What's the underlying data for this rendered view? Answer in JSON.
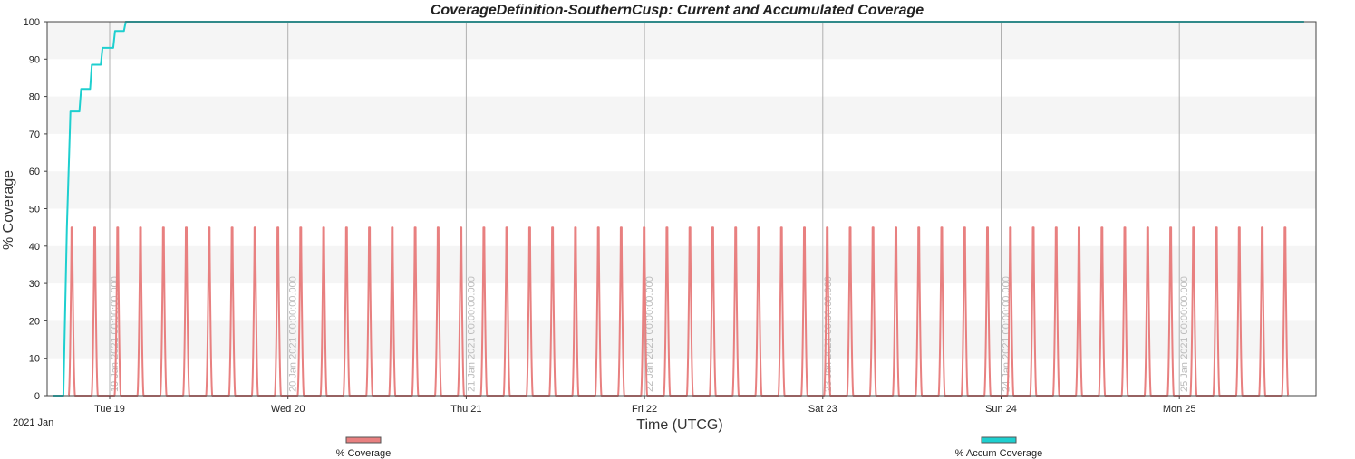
{
  "chart_data": {
    "type": "line",
    "title": "CoverageDefinition-SouthernCusp:  Current and Accumulated Coverage",
    "xlabel": "Time (UTCG)",
    "ylabel": "% Coverage",
    "ylim": [
      0,
      100
    ],
    "y_ticks": [
      0,
      10,
      20,
      30,
      40,
      50,
      60,
      70,
      80,
      90,
      100
    ],
    "x_date_origin_label": "2021 Jan",
    "x_day_ticks": [
      {
        "day": 19,
        "label": "Tue 19",
        "line_label": "19 Jan 2021 00:00:00.000"
      },
      {
        "day": 20,
        "label": "Wed 20",
        "line_label": "20 Jan 2021 00:00:00.000"
      },
      {
        "day": 21,
        "label": "Thu 21",
        "line_label": "21 Jan 2021 00:00:00.000"
      },
      {
        "day": 22,
        "label": "Fri 22",
        "line_label": "22 Jan 2021 00:00:00.000"
      },
      {
        "day": 23,
        "label": "Sat 23",
        "line_label": "23 Jan 2021 00:00:00.000"
      },
      {
        "day": 24,
        "label": "Sun 24",
        "line_label": "24 Jan 2021 00:00:00.000"
      },
      {
        "day": 25,
        "label": "Mon 25",
        "line_label": "25 Jan 2021 00:00:00.000"
      }
    ],
    "grid": true,
    "alternating_bands": true,
    "legend_position": "bottom",
    "series": [
      {
        "name": "% Coverage",
        "color": "#e88080",
        "kind": "periodic_spikes",
        "start_day": 18.77,
        "end_day": 25.7,
        "period_days": 0.1284,
        "peak_value": 45,
        "base_value": 0
      },
      {
        "name": "% Accum Coverage",
        "color": "#1ecfcf",
        "kind": "step",
        "x_days": [
          18.68,
          18.74,
          18.76,
          18.78,
          18.83,
          18.84,
          18.89,
          18.9,
          18.95,
          18.96,
          19.02,
          19.03,
          19.08,
          19.09,
          25.7
        ],
        "values": [
          0,
          0,
          45,
          76,
          76,
          82,
          82,
          88.5,
          88.5,
          93,
          93,
          97.5,
          97.5,
          100,
          100
        ]
      }
    ]
  }
}
